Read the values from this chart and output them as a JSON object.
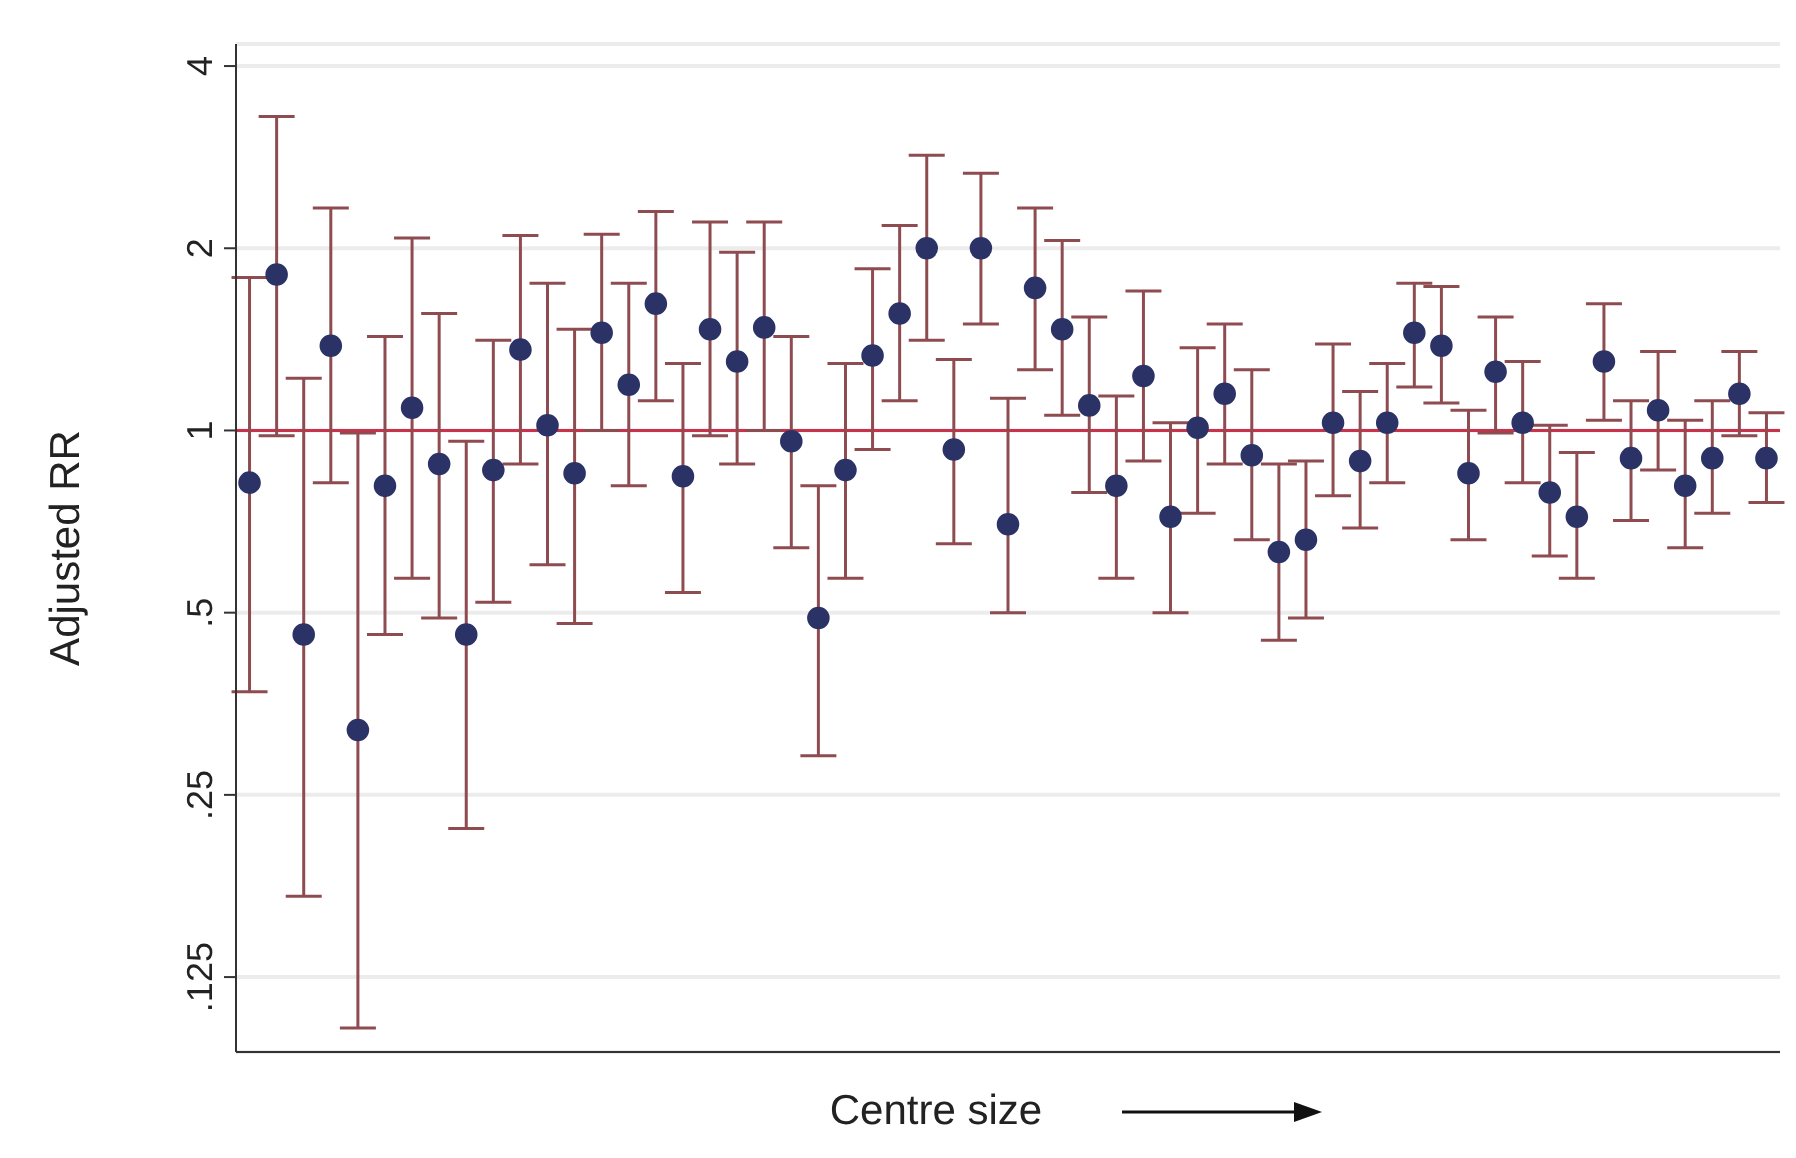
{
  "chart_data": {
    "type": "scatter",
    "xlabel": "Centre size",
    "ylabel": "Adjusted RR",
    "log": "y",
    "grid": "y",
    "marker": "circle",
    "tick_labels": "y",
    "categories": [
      null,
      null,
      null,
      null,
      null,
      null,
      null,
      null,
      null,
      null,
      null,
      null,
      null,
      null,
      null,
      null,
      null,
      null,
      null,
      null,
      null,
      null,
      null,
      null,
      null,
      null,
      null,
      null,
      null,
      null,
      null,
      null,
      null,
      null,
      null,
      null,
      null,
      null,
      null,
      null,
      null,
      null,
      null,
      null,
      null,
      null,
      null,
      null,
      null,
      null,
      null,
      null,
      null,
      null,
      null,
      null,
      null
    ],
    "ylim": [
      0.094,
      4.35
    ],
    "yticks": [
      {
        "value": 0.125,
        "label": ".125"
      },
      {
        "value": 0.25,
        "label": ".25"
      },
      {
        "value": 0.5,
        "label": ".5"
      },
      1,
      2,
      4
    ],
    "ref_lines": [
      {
        "axis": "y",
        "value": 1,
        "color": "#c8324a"
      }
    ],
    "series": [
      {
        "color": "#2b3366",
        "values": [
          0.82,
          1.81,
          0.46,
          1.38,
          0.32,
          0.81,
          1.09,
          0.88,
          0.46,
          0.86,
          1.36,
          1.02,
          0.85,
          1.45,
          1.19,
          1.62,
          0.84,
          1.47,
          1.3,
          1.48,
          0.96,
          0.49,
          0.86,
          1.33,
          1.56,
          2.0,
          0.93,
          2.0,
          0.7,
          1.72,
          1.47,
          1.1,
          0.81,
          1.23,
          0.72,
          1.01,
          1.15,
          0.91,
          0.63,
          0.66,
          1.03,
          0.89,
          1.03,
          1.45,
          1.38,
          0.85,
          1.25,
          1.03,
          0.79,
          0.72,
          1.3,
          0.9,
          1.08,
          0.81,
          0.9,
          1.15,
          0.9
        ],
        "errors": [
          [
            0.37,
            1.79
          ],
          [
            0.98,
            3.3
          ],
          [
            0.17,
            1.22
          ],
          [
            0.82,
            2.33
          ],
          [
            0.103,
            0.99
          ],
          [
            0.46,
            1.43
          ],
          [
            0.57,
            2.08
          ],
          [
            0.49,
            1.56
          ],
          [
            0.22,
            0.96
          ],
          [
            0.52,
            1.41
          ],
          [
            0.88,
            2.1
          ],
          [
            0.6,
            1.75
          ],
          [
            0.48,
            1.47
          ],
          [
            1.0,
            2.11
          ],
          [
            0.81,
            1.75
          ],
          [
            1.12,
            2.3
          ],
          [
            0.54,
            1.29
          ],
          [
            0.98,
            2.21
          ],
          [
            0.88,
            1.97
          ],
          [
            1.0,
            2.21
          ],
          [
            0.64,
            1.43
          ],
          [
            0.29,
            0.81
          ],
          [
            0.57,
            1.29
          ],
          [
            0.93,
            1.85
          ],
          [
            1.12,
            2.18
          ],
          [
            1.41,
            2.85
          ],
          [
            0.65,
            1.31
          ],
          [
            1.5,
            2.66
          ],
          [
            0.5,
            1.13
          ],
          [
            1.26,
            2.33
          ],
          [
            1.06,
            2.06
          ],
          [
            0.79,
            1.54
          ],
          [
            0.57,
            1.14
          ],
          [
            0.89,
            1.7
          ],
          [
            0.5,
            1.03
          ],
          [
            0.73,
            1.37
          ],
          [
            0.88,
            1.5
          ],
          [
            0.66,
            1.26
          ],
          [
            0.45,
            0.88
          ],
          [
            0.49,
            0.89
          ],
          [
            0.78,
            1.39
          ],
          [
            0.69,
            1.16
          ],
          [
            0.82,
            1.29
          ],
          [
            1.18,
            1.75
          ],
          [
            1.11,
            1.73
          ],
          [
            0.66,
            1.08
          ],
          [
            0.99,
            1.54
          ],
          [
            0.82,
            1.3
          ],
          [
            0.62,
            1.02
          ],
          [
            0.57,
            0.92
          ],
          [
            1.04,
            1.62
          ],
          [
            0.71,
            1.12
          ],
          [
            0.86,
            1.35
          ],
          [
            0.64,
            1.04
          ],
          [
            0.73,
            1.12
          ],
          [
            0.98,
            1.35
          ],
          [
            0.76,
            1.07
          ]
        ]
      }
    ]
  }
}
